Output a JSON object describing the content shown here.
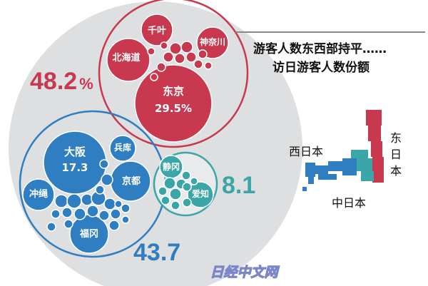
{
  "chart_data": {
    "type": "bubble",
    "title_lines": [
      "游客人数东西部持平……",
      "访日游客人数份额"
    ],
    "unit": "%",
    "groups": [
      {
        "name": "东日本",
        "total_label": "48.2",
        "percent_sign": "%",
        "color": "#c8384f",
        "labeled_members": [
          {
            "name": "东京",
            "value_label": "29.5%"
          },
          {
            "name": "北海道"
          },
          {
            "name": "千叶"
          },
          {
            "name": "神奈川"
          }
        ]
      },
      {
        "name": "西日本",
        "total_label": "43.7",
        "color": "#2f7ec1",
        "labeled_members": [
          {
            "name": "大阪",
            "value_label": "17.3"
          },
          {
            "name": "兵库"
          },
          {
            "name": "京都"
          },
          {
            "name": "冲绳"
          },
          {
            "name": "福冈"
          }
        ]
      },
      {
        "name": "中日本",
        "total_label": "8.1",
        "color": "#3aa6a8",
        "labeled_members": [
          {
            "name": "静冈"
          },
          {
            "name": "爱知"
          }
        ]
      }
    ]
  },
  "map": {
    "labels": {
      "west": "西日本",
      "central": "中日本",
      "east": "东日本"
    },
    "colors": {
      "west": "#2f7ec1",
      "central": "#3aa6a8",
      "east": "#c8384f"
    }
  },
  "watermark": "日经中文网"
}
